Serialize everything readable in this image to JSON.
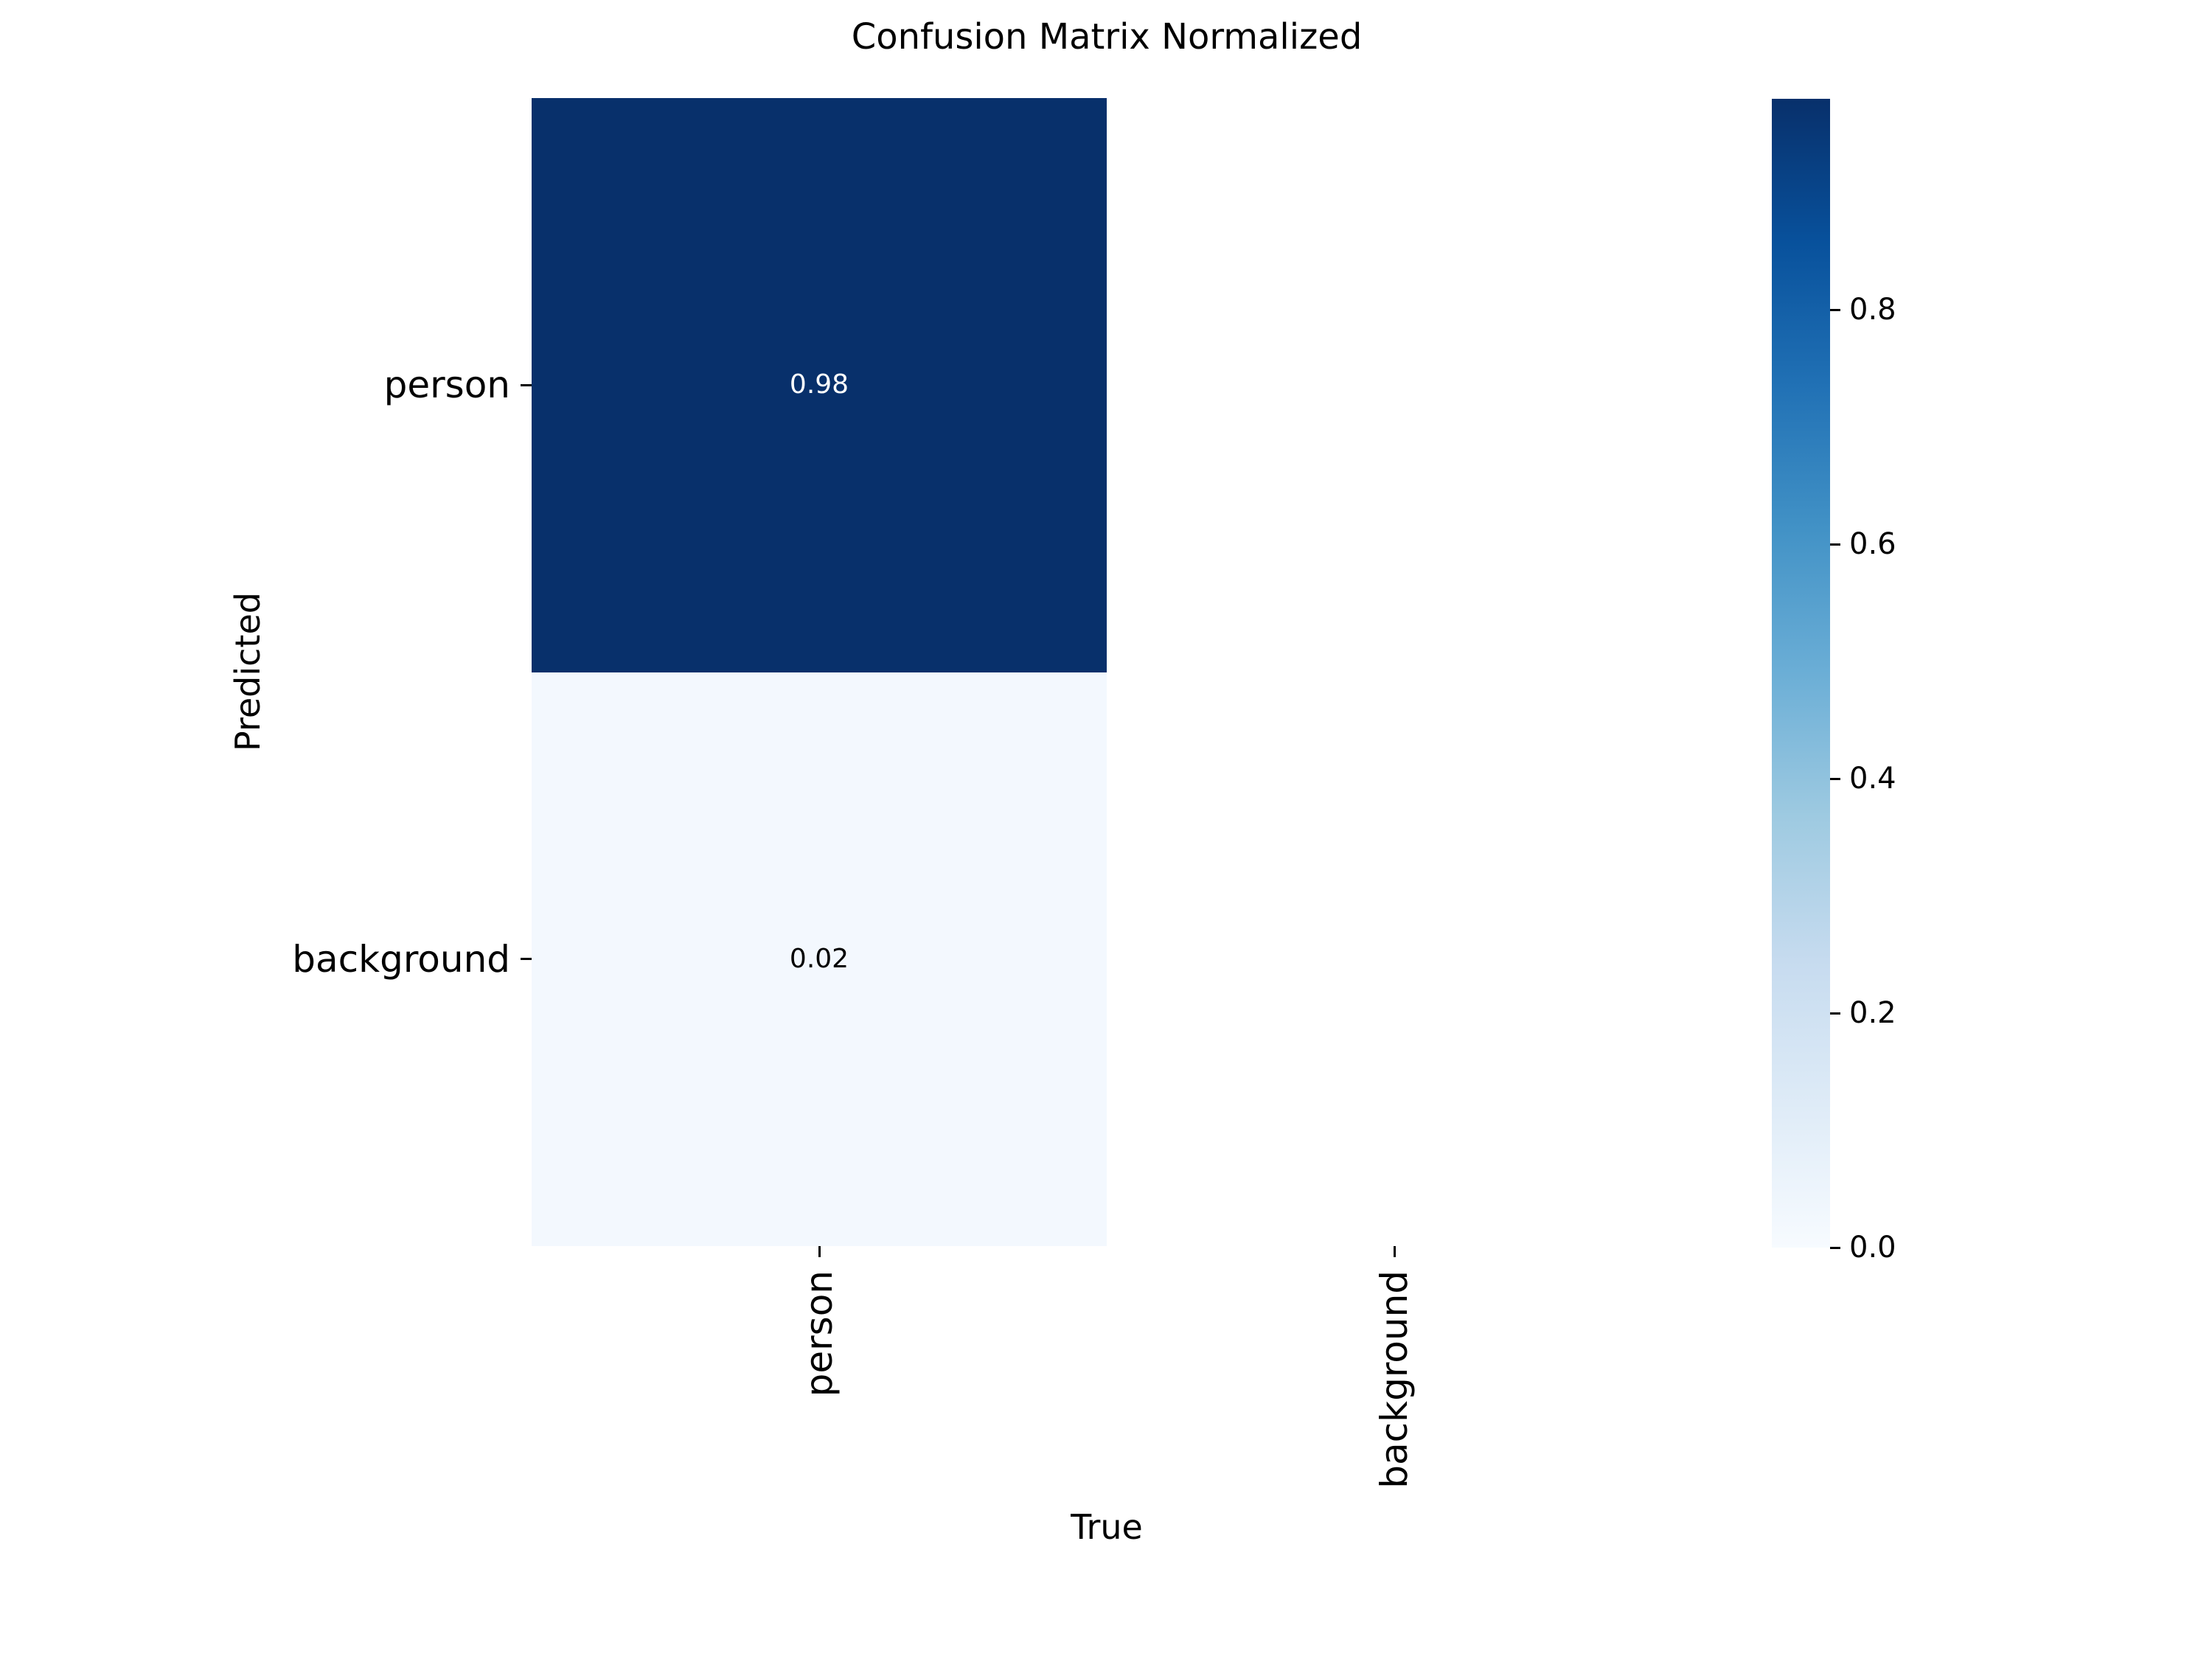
{
  "chart_data": {
    "type": "heatmap",
    "title": "Confusion Matrix Normalized",
    "xlabel": "True",
    "ylabel": "Predicted",
    "x_categories": [
      "person",
      "background"
    ],
    "y_categories": [
      "person",
      "background"
    ],
    "matrix": [
      [
        0.98,
        null
      ],
      [
        0.02,
        null
      ]
    ],
    "cell_labels": [
      [
        "0.98",
        ""
      ],
      [
        "0.02",
        ""
      ]
    ],
    "cell_colors": [
      [
        "#08306b",
        "#ffffff"
      ],
      [
        "#f3f8fe",
        "#ffffff"
      ]
    ],
    "cell_text_colors": [
      [
        "#ffffff",
        "#000000"
      ],
      [
        "#000000",
        "#000000"
      ]
    ],
    "colormap": "Blues",
    "vmin": 0.0,
    "vmax": 0.98,
    "colorbar_ticks": [
      "0.0",
      "0.2",
      "0.4",
      "0.6",
      "0.8"
    ],
    "colorbar_gradient": [
      "#f7fbff",
      "#deebf7",
      "#c6dbef",
      "#9ecae1",
      "#6baed6",
      "#4292c6",
      "#2171b5",
      "#08519c",
      "#08306b"
    ],
    "colorbar_position": "right",
    "grid": false,
    "background_color": "#ffffff",
    "tick_color": "#000000"
  }
}
